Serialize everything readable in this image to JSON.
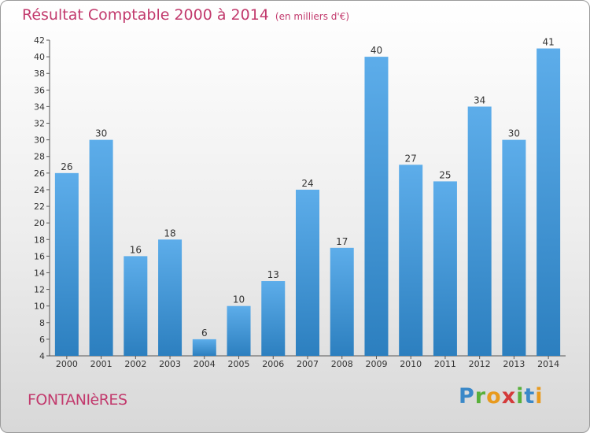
{
  "header": {
    "title": "Résultat Comptable 2000 à 2014",
    "subtitle": "(en milliers d'€)"
  },
  "footer": {
    "town": "FONTANIèRES",
    "logo": "Proxiti"
  },
  "colors": {
    "bar_light": "#5dadea",
    "bar_dark": "#2c7fbf",
    "title": "#c23a6d"
  },
  "chart_data": {
    "type": "bar",
    "title": "Résultat Comptable 2000 à 2014",
    "subtitle": "(en milliers d'€)",
    "categories": [
      "2000",
      "2001",
      "2002",
      "2003",
      "2004",
      "2005",
      "2006",
      "2007",
      "2008",
      "2009",
      "2010",
      "2011",
      "2012",
      "2013",
      "2014"
    ],
    "values": [
      26,
      30,
      16,
      18,
      6,
      10,
      13,
      24,
      17,
      40,
      27,
      25,
      34,
      30,
      41
    ],
    "ylim": [
      4,
      42
    ],
    "yticks": [
      4,
      6,
      8,
      10,
      12,
      14,
      16,
      18,
      20,
      22,
      24,
      26,
      28,
      30,
      32,
      34,
      36,
      38,
      40,
      42
    ],
    "grid": false,
    "legend": "none"
  }
}
